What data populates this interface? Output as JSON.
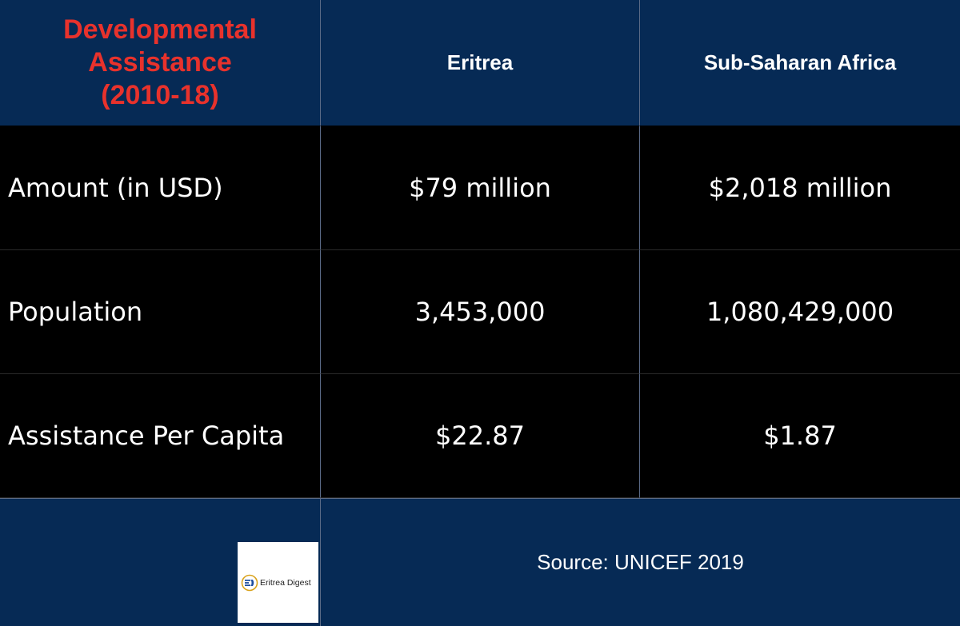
{
  "header": {
    "title_lines": [
      "Developmental",
      "Assistance",
      "(2010-18)"
    ],
    "col1": "Eritrea",
    "col2": "Sub-Saharan Africa"
  },
  "rows": [
    {
      "label": "Amount (in USD)",
      "eritrea": "$79 million",
      "ssa": "$2,018 million"
    },
    {
      "label": "Population",
      "eritrea": "3,453,000",
      "ssa": "1,080,429,000"
    },
    {
      "label": "Assistance Per Capita",
      "eritrea": "$22.87",
      "ssa": "$1.87"
    }
  ],
  "footer": {
    "source": "Source: UNICEF 2019",
    "logo_text": "Eritrea Digest"
  },
  "colors": {
    "header_bg": "#062a55",
    "title_red": "#e8322c",
    "body_bg": "#000000",
    "logo_accent_gold": "#d9a21b",
    "logo_accent_blue": "#1f4fa0"
  }
}
